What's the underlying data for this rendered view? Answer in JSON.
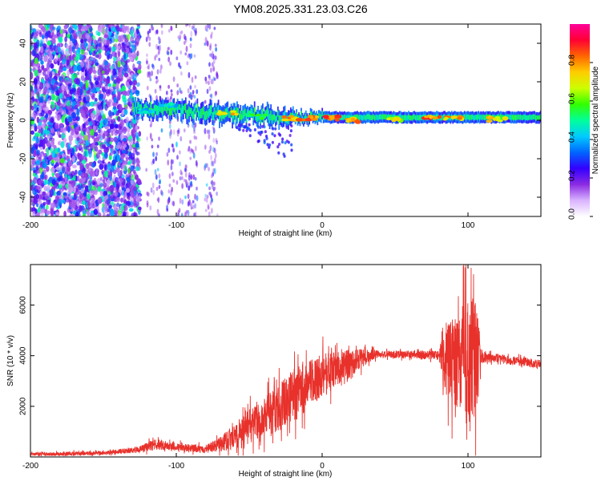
{
  "title": "YM08.2025.331.23.03.C26",
  "chart_data": [
    {
      "type": "heatmap",
      "name": "spectrogram",
      "xlabel": "Height of straight line (km)",
      "ylabel": "Frequency (Hz)",
      "xlim": [
        -200,
        150
      ],
      "ylim": [
        -50,
        50
      ],
      "xticks": [
        -200,
        -100,
        0,
        100
      ],
      "yticks": [
        -40,
        -20,
        0,
        20,
        40
      ],
      "colorbar": {
        "label": "Normalized spectral amplitude",
        "range": [
          0,
          1
        ],
        "ticks": [
          "0.0",
          "0.2",
          "0.4",
          "0.6",
          "0.8"
        ],
        "tick_values": [
          0.0,
          0.2,
          0.4,
          0.6,
          0.8
        ],
        "colormap": [
          "#ffffff",
          "#d9b3ff",
          "#8a2be2",
          "#3300ff",
          "#0066ff",
          "#00ccff",
          "#00ff99",
          "#33ff00",
          "#ccff00",
          "#ffcc00",
          "#ff6600",
          "#ff0033",
          "#ff0099"
        ]
      },
      "features": [
        {
          "desc": "scattered broadband noise",
          "x_range": [
            -200,
            -125
          ],
          "freq_range": [
            -50,
            50
          ],
          "amplitude": 0.1
        },
        {
          "desc": "sparse noise columns",
          "x_range": [
            -125,
            -72
          ],
          "freq_range": [
            -50,
            50
          ],
          "amplitude": 0.05
        },
        {
          "desc": "signal band",
          "x_range": [
            -130,
            150
          ],
          "freq_center": 1.5,
          "freq_halfwidth": 3,
          "amplitude": 0.45
        },
        {
          "desc": "strong band segments",
          "x": [
            -120,
            -105,
            -65,
            -45,
            -20,
            -10,
            5,
            20,
            50,
            75,
            90,
            120
          ],
          "freq": [
            5,
            8,
            4,
            2,
            1,
            1,
            1,
            0,
            0.5,
            1,
            1,
            0.5
          ],
          "amplitude": [
            0.45,
            0.45,
            0.75,
            0.55,
            0.8,
            0.85,
            0.85,
            0.8,
            0.7,
            0.85,
            0.8,
            0.75
          ]
        }
      ]
    },
    {
      "type": "line",
      "name": "snr",
      "xlabel": "Height of straight line (km)",
      "ylabel": "SNR (10 * v/v)",
      "xlim": [
        -200,
        150
      ],
      "ylim": [
        0,
        7600
      ],
      "xticks": [
        -200,
        -100,
        0,
        100
      ],
      "yticks": [
        2000,
        4000,
        6000
      ],
      "color": "#e8312b",
      "envelope_x": [
        -200,
        -150,
        -125,
        -115,
        -100,
        -80,
        -70,
        -60,
        -50,
        -40,
        -30,
        -20,
        -10,
        0,
        10,
        20,
        30,
        35,
        40,
        60,
        80,
        85,
        90,
        95,
        98,
        100,
        102,
        105,
        110,
        120,
        130,
        140,
        150
      ],
      "envelope_mean": [
        100,
        150,
        300,
        500,
        400,
        300,
        500,
        800,
        1200,
        1600,
        1900,
        2400,
        2900,
        3200,
        3500,
        3700,
        3950,
        4050,
        4050,
        4050,
        4000,
        3900,
        3800,
        3700,
        3700,
        3700,
        3700,
        3800,
        3900,
        3900,
        3800,
        3750,
        3650
      ],
      "envelope_noise": [
        80,
        80,
        120,
        220,
        150,
        150,
        300,
        500,
        700,
        800,
        900,
        1100,
        1000,
        900,
        700,
        550,
        300,
        200,
        150,
        150,
        200,
        1500,
        1800,
        1800,
        2500,
        3300,
        2500,
        2400,
        200,
        180,
        180,
        180,
        180
      ]
    }
  ]
}
